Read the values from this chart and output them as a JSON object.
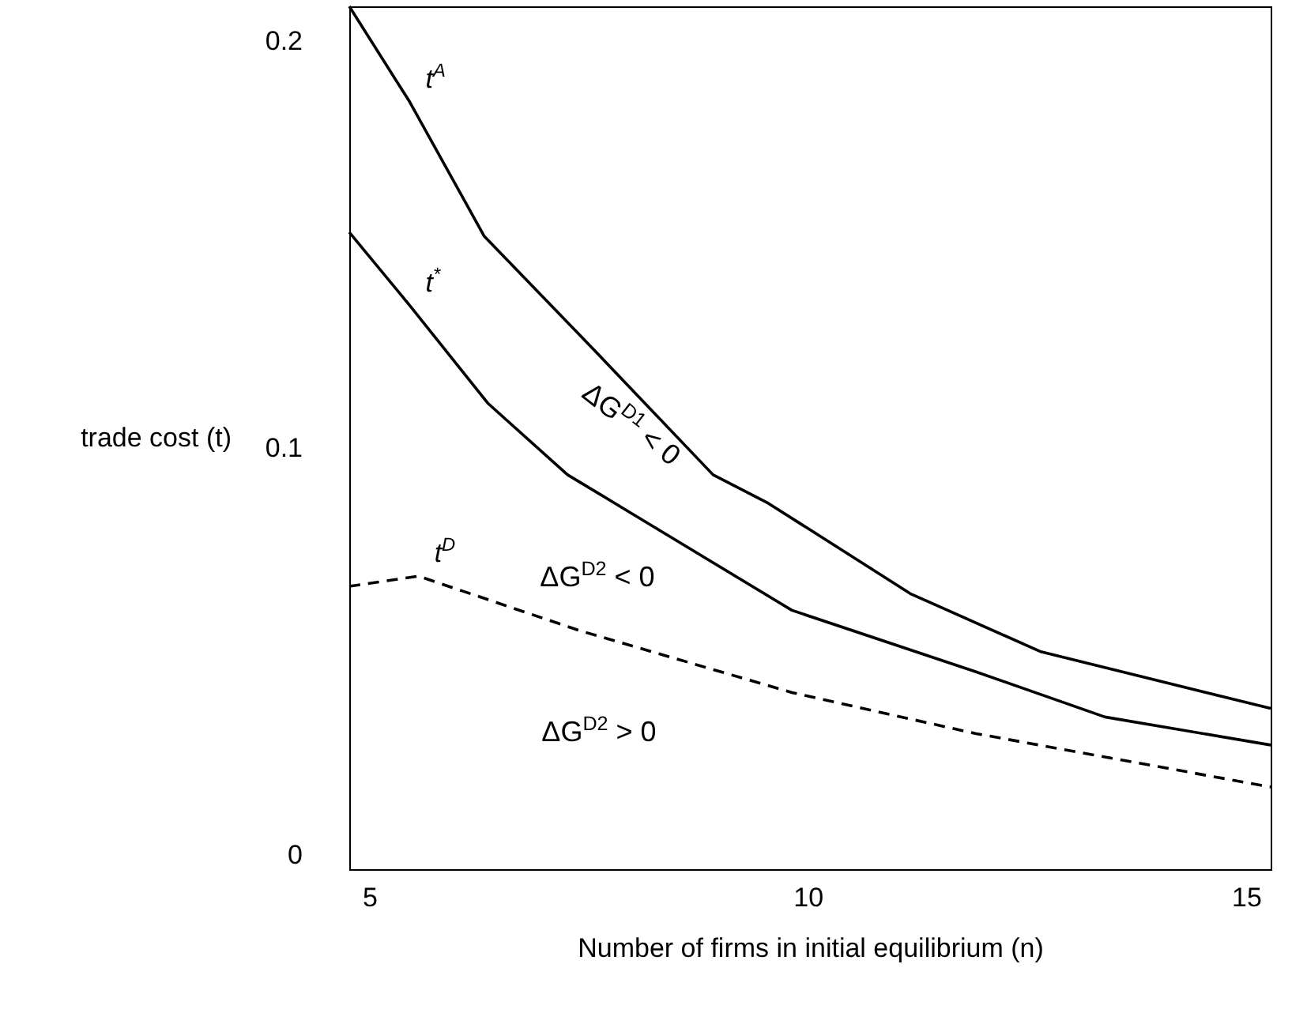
{
  "chart_data": {
    "type": "line",
    "xlabel": "Number of firms in initial equilibrium (n)",
    "ylabel": "trade cost (t)",
    "xlim": [
      4.77,
      15.28
    ],
    "ylim": [
      -0.0035,
      0.2085
    ],
    "xticks": [
      5,
      10,
      15
    ],
    "yticks": [
      0,
      0.1,
      0.2
    ],
    "grid": false,
    "legend": false,
    "marker": "none",
    "line_style": "solid",
    "series": [
      {
        "name": "t$^{A}$",
        "color": "#000000",
        "x": [
          4.77,
          5.46,
          6.31,
          7.49,
          8.92,
          9.55,
          11.17,
          12.65,
          15.28
        ],
        "values": [
          0.2085,
          0.185,
          0.152,
          0.1257,
          0.0934,
          0.0864,
          0.0642,
          0.05,
          0.036
        ]
      },
      {
        "name": "t$^{*}$",
        "color": "#000000",
        "x": [
          4.77,
          5.46,
          6.35,
          7.26,
          7.8,
          9.82,
          11.92,
          13.39,
          15.28
        ],
        "values": [
          0.153,
          0.135,
          0.111,
          0.0934,
          0.0864,
          0.0601,
          0.045,
          0.0339,
          0.027
        ]
      },
      {
        "name": "t$^{D}$",
        "color": "#000000",
        "line_style": "dashed",
        "x": [
          4.77,
          5.56,
          7.4,
          9.82,
          11.92,
          15.28
        ],
        "values": [
          0.066,
          0.0685,
          0.0551,
          0.0399,
          0.0298,
          0.0167
        ]
      }
    ],
    "annotations": [
      "ΔG$^{D1}$ < 0",
      "ΔG$^{D2}$ < 0",
      "ΔG$^{D2}$ > 0"
    ]
  }
}
